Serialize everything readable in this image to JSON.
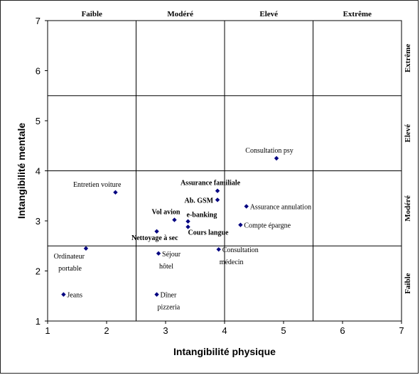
{
  "chart_data": {
    "type": "scatter",
    "xlabel": "Intangibilité physique",
    "ylabel": "Intangibilité mentale",
    "xlim": [
      1,
      7
    ],
    "ylim": [
      1,
      7
    ],
    "xticks": [
      "1",
      "2",
      "3",
      "4",
      "5",
      "6",
      "7"
    ],
    "yticks": [
      "1",
      "2",
      "3",
      "4",
      "5",
      "6",
      "7"
    ],
    "x_dividers": [
      2.5,
      4.0,
      5.5
    ],
    "y_dividers": [
      2.5,
      4.0,
      5.5
    ],
    "column_labels": [
      "Faible",
      "Modéré",
      "Elevé",
      "Extrême"
    ],
    "row_labels": [
      "Faible",
      "Modéré",
      "Elevé",
      "Extrême"
    ],
    "marker_color": "#000080",
    "points": [
      {
        "x": 1.27,
        "y": 1.53,
        "label": [
          "Jeans"
        ],
        "bold": false,
        "anchor": "right"
      },
      {
        "x": 1.65,
        "y": 2.45,
        "label": [
          "Ordinateur",
          "portable"
        ],
        "bold": false,
        "anchor": "below-left"
      },
      {
        "x": 2.15,
        "y": 3.57,
        "label": [
          "Entretien voiture"
        ],
        "bold": false,
        "anchor": "above-left"
      },
      {
        "x": 2.85,
        "y": 1.53,
        "label": [
          "Dîner",
          "pizzeria"
        ],
        "bold": false,
        "anchor": "right-stack"
      },
      {
        "x": 2.88,
        "y": 2.35,
        "label": [
          "Séjour",
          "hôtel"
        ],
        "bold": false,
        "anchor": "right-stack"
      },
      {
        "x": 2.85,
        "y": 2.79,
        "label": [
          "Nettoyage à sec"
        ],
        "bold": true,
        "anchor": "left-below"
      },
      {
        "x": 3.15,
        "y": 3.02,
        "label": [
          "Vol avion"
        ],
        "bold": true,
        "anchor": "above-left"
      },
      {
        "x": 3.38,
        "y": 2.99,
        "label": [
          "e-banking"
        ],
        "bold": true,
        "anchor": "above-right"
      },
      {
        "x": 3.38,
        "y": 2.88,
        "label": [
          "Cours langue"
        ],
        "bold": true,
        "anchor": "below-right"
      },
      {
        "x": 3.88,
        "y": 3.6,
        "label": [
          "Assurance familiale"
        ],
        "bold": true,
        "anchor": "above-center"
      },
      {
        "x": 3.88,
        "y": 3.42,
        "label": [
          "Ab. GSM"
        ],
        "bold": true,
        "anchor": "left"
      },
      {
        "x": 3.9,
        "y": 2.43,
        "label": [
          "Consultation",
          "médecin"
        ],
        "bold": false,
        "anchor": "right-stack"
      },
      {
        "x": 4.27,
        "y": 2.92,
        "label": [
          "Compte épargne"
        ],
        "bold": false,
        "anchor": "right"
      },
      {
        "x": 4.37,
        "y": 3.29,
        "label": [
          "Assurance annulation"
        ],
        "bold": false,
        "anchor": "right"
      },
      {
        "x": 4.88,
        "y": 4.25,
        "label": [
          "Consultation psy"
        ],
        "bold": false,
        "anchor": "above-center"
      }
    ]
  }
}
